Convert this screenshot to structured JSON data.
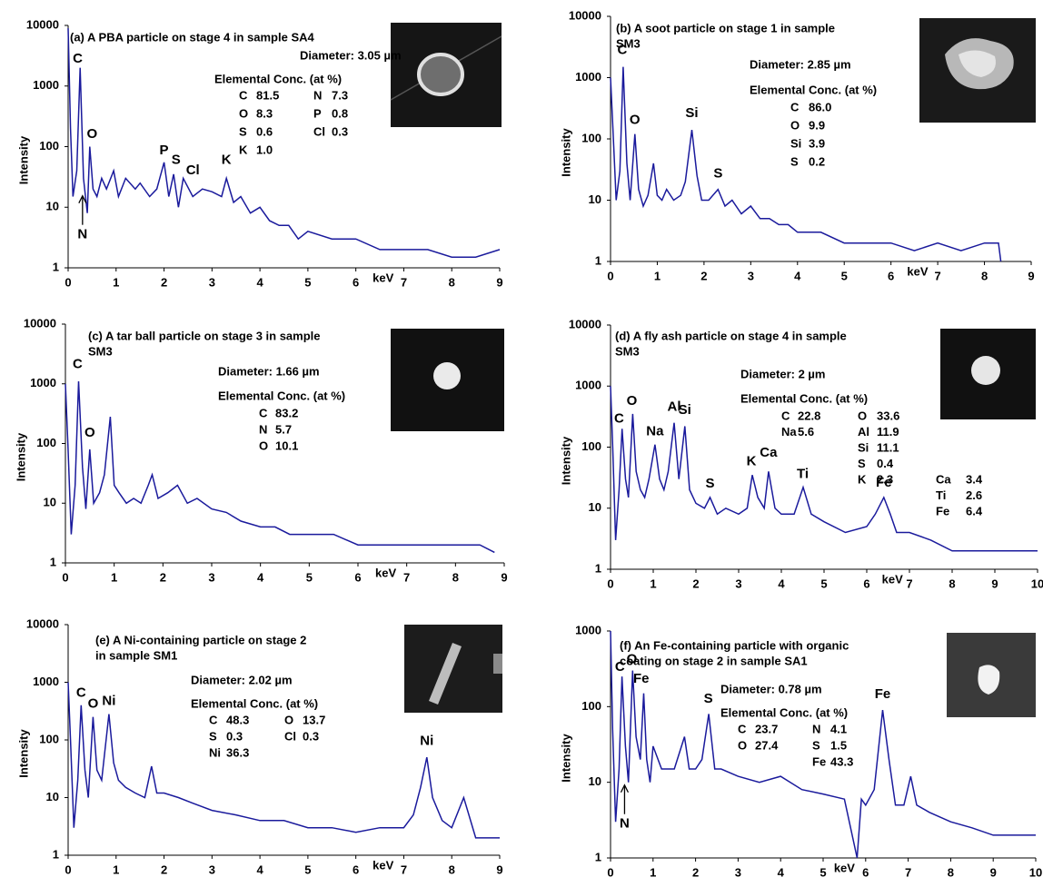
{
  "chart_data": [
    {
      "type": "line",
      "title": [
        "(a) A PBA particle on stage 4 in sample SA4"
      ],
      "ylabel": "Intensity",
      "xlabel": "keV",
      "color": "#1a1a9c",
      "log_y": true,
      "xlim": [
        0,
        9
      ],
      "ylim": [
        1,
        10000
      ],
      "xticks": [
        0,
        1,
        2,
        3,
        4,
        5,
        6,
        7,
        8,
        9
      ],
      "yticks": [
        1,
        10,
        100,
        1000,
        10000
      ],
      "x": [
        0,
        0.05,
        0.1,
        0.18,
        0.25,
        0.32,
        0.4,
        0.45,
        0.52,
        0.6,
        0.7,
        0.8,
        0.95,
        1.05,
        1.2,
        1.4,
        1.5,
        1.7,
        1.85,
        2.0,
        2.1,
        2.2,
        2.3,
        2.4,
        2.6,
        2.8,
        3.0,
        3.2,
        3.3,
        3.45,
        3.6,
        3.8,
        4.0,
        4.2,
        4.4,
        4.6,
        4.8,
        5.0,
        5.5,
        6.0,
        6.5,
        7.0,
        7.5,
        8.0,
        8.5,
        9.0
      ],
      "values": [
        9000,
        200,
        15,
        40,
        2000,
        30,
        8,
        100,
        20,
        15,
        30,
        20,
        40,
        15,
        30,
        20,
        25,
        15,
        20,
        55,
        15,
        35,
        10,
        30,
        15,
        20,
        18,
        15,
        30,
        12,
        15,
        8,
        10,
        6,
        5,
        5,
        3,
        4,
        3,
        3,
        2,
        2,
        2,
        1.5,
        1.5,
        2
      ],
      "annotations": [
        {
          "text": "C",
          "x": 0.2,
          "y": 2800
        },
        {
          "text": "O",
          "x": 0.5,
          "y": 160
        },
        {
          "text": "P",
          "x": 2.0,
          "y": 85
        },
        {
          "text": "S",
          "x": 2.25,
          "y": 60
        },
        {
          "text": "Cl",
          "x": 2.6,
          "y": 40
        },
        {
          "text": "K",
          "x": 3.3,
          "y": 60
        },
        {
          "text": "N",
          "x": 0.3,
          "y": 3.5,
          "arrow": true
        }
      ],
      "diameter": "Diameter: 3.05 µm",
      "conc_title": "Elemental Conc. (at %)",
      "conc_rows": [
        [
          "C",
          "81.5",
          "N",
          "7.3"
        ],
        [
          "O",
          "8.3",
          "P",
          "0.8"
        ],
        [
          "S",
          "0.6",
          "Cl",
          "0.3"
        ],
        [
          "K",
          "1.0"
        ]
      ]
    },
    {
      "type": "line",
      "title": [
        "(b) A soot particle on stage 1 in sample",
        "SM3"
      ],
      "ylabel": "Intensity",
      "xlabel": "keV",
      "color": "#1a1a9c",
      "log_y": true,
      "xlim": [
        0,
        9
      ],
      "ylim": [
        1,
        10000
      ],
      "xticks": [
        0,
        1,
        2,
        3,
        4,
        5,
        6,
        7,
        8,
        9
      ],
      "yticks": [
        1,
        10,
        100,
        1000,
        10000
      ],
      "x": [
        0,
        0.05,
        0.12,
        0.2,
        0.27,
        0.35,
        0.42,
        0.52,
        0.6,
        0.7,
        0.8,
        0.92,
        1.0,
        1.1,
        1.2,
        1.35,
        1.5,
        1.6,
        1.74,
        1.85,
        1.95,
        2.1,
        2.3,
        2.45,
        2.6,
        2.8,
        3.0,
        3.2,
        3.4,
        3.6,
        3.8,
        4.0,
        4.5,
        5.0,
        5.5,
        6.0,
        6.5,
        7.0,
        7.5,
        8.0,
        8.3,
        8.35
      ],
      "values": [
        1000,
        150,
        10,
        30,
        1500,
        40,
        10,
        120,
        15,
        8,
        12,
        40,
        12,
        10,
        15,
        10,
        12,
        20,
        140,
        25,
        10,
        10,
        15,
        8,
        10,
        6,
        8,
        5,
        5,
        4,
        4,
        3,
        3,
        2,
        2,
        2,
        1.5,
        2,
        1.5,
        2,
        2,
        1
      ],
      "annotations": [
        {
          "text": "C",
          "x": 0.25,
          "y": 2800
        },
        {
          "text": "O",
          "x": 0.52,
          "y": 200
        },
        {
          "text": "Si",
          "x": 1.74,
          "y": 260
        },
        {
          "text": "S",
          "x": 2.3,
          "y": 27
        }
      ],
      "diameter": "Diameter: 2.85 µm",
      "conc_title": "Elemental Conc. (at %)",
      "conc_rows": [
        [
          "C",
          "86.0"
        ],
        [
          "O",
          "9.9"
        ],
        [
          "Si",
          "3.9"
        ],
        [
          "S",
          "0.2"
        ]
      ]
    },
    {
      "type": "line",
      "title": [
        "(c) A tar ball particle on stage 3 in sample",
        "SM3"
      ],
      "ylabel": "Intensity",
      "xlabel": "keV",
      "color": "#1a1a9c",
      "log_y": true,
      "xlim": [
        0,
        9
      ],
      "ylim": [
        1,
        10000
      ],
      "xticks": [
        0,
        1,
        2,
        3,
        4,
        5,
        6,
        7,
        8,
        9
      ],
      "yticks": [
        1,
        10,
        100,
        1000,
        10000
      ],
      "x": [
        0,
        0.05,
        0.12,
        0.2,
        0.27,
        0.35,
        0.42,
        0.5,
        0.58,
        0.7,
        0.8,
        0.92,
        1.0,
        1.1,
        1.25,
        1.4,
        1.55,
        1.7,
        1.78,
        1.9,
        2.1,
        2.3,
        2.5,
        2.7,
        3.0,
        3.3,
        3.6,
        4.0,
        4.3,
        4.6,
        5.0,
        5.5,
        6.0,
        6.5,
        7.0,
        7.5,
        8.0,
        8.5,
        8.8
      ],
      "values": [
        1000,
        100,
        3,
        20,
        1100,
        40,
        8,
        80,
        10,
        15,
        30,
        280,
        20,
        15,
        10,
        12,
        10,
        20,
        30,
        12,
        15,
        20,
        10,
        12,
        8,
        7,
        5,
        4,
        4,
        3,
        3,
        3,
        2,
        2,
        2,
        2,
        2,
        2,
        1.5
      ],
      "annotations": [
        {
          "text": "C",
          "x": 0.25,
          "y": 2100
        },
        {
          "text": "O",
          "x": 0.5,
          "y": 150
        }
      ],
      "diameter": "Diameter: 1.66 µm",
      "conc_title": "Elemental Conc. (at %)",
      "conc_rows": [
        [
          "C",
          "83.2"
        ],
        [
          "N",
          "5.7"
        ],
        [
          "O",
          "10.1"
        ]
      ]
    },
    {
      "type": "line",
      "title": [
        "(d) A fly ash particle on stage 4 in sample",
        "SM3"
      ],
      "ylabel": "Intensity",
      "xlabel": "keV",
      "color": "#1a1a9c",
      "log_y": true,
      "xlim": [
        0,
        10
      ],
      "ylim": [
        1,
        10000
      ],
      "xticks": [
        0,
        1,
        2,
        3,
        4,
        5,
        6,
        7,
        8,
        9,
        10
      ],
      "yticks": [
        1,
        10,
        100,
        1000,
        10000
      ],
      "x": [
        0,
        0.05,
        0.12,
        0.2,
        0.27,
        0.35,
        0.42,
        0.52,
        0.6,
        0.7,
        0.8,
        0.9,
        1.04,
        1.15,
        1.25,
        1.35,
        1.49,
        1.6,
        1.74,
        1.85,
        2.0,
        2.2,
        2.33,
        2.5,
        2.7,
        3.0,
        3.2,
        3.32,
        3.45,
        3.6,
        3.7,
        3.85,
        4.0,
        4.3,
        4.51,
        4.7,
        5.0,
        5.5,
        6.0,
        6.2,
        6.4,
        6.55,
        6.7,
        7.0,
        7.5,
        8.0,
        8.5,
        9.0,
        9.5,
        10.0
      ],
      "values": [
        1000,
        100,
        3,
        20,
        200,
        30,
        15,
        350,
        40,
        20,
        15,
        30,
        110,
        30,
        20,
        40,
        250,
        30,
        220,
        20,
        12,
        10,
        15,
        8,
        10,
        8,
        10,
        35,
        15,
        10,
        40,
        10,
        8,
        8,
        22,
        8,
        6,
        4,
        5,
        8,
        15,
        8,
        4,
        4,
        3,
        2,
        2,
        2,
        2,
        2
      ],
      "annotations": [
        {
          "text": "C",
          "x": 0.2,
          "y": 290
        },
        {
          "text": "O",
          "x": 0.5,
          "y": 560
        },
        {
          "text": "Na",
          "x": 1.04,
          "y": 180
        },
        {
          "text": "Al",
          "x": 1.49,
          "y": 450
        },
        {
          "text": "Si",
          "x": 1.74,
          "y": 400
        },
        {
          "text": "S",
          "x": 2.33,
          "y": 25
        },
        {
          "text": "K",
          "x": 3.3,
          "y": 58
        },
        {
          "text": "Ca",
          "x": 3.7,
          "y": 80
        },
        {
          "text": "Ti",
          "x": 4.5,
          "y": 36
        },
        {
          "text": "Fe",
          "x": 6.4,
          "y": 26
        }
      ],
      "diameter": "Diameter: 2 µm",
      "conc_title": "Elemental Conc. (at %)",
      "conc_rows": [
        [
          "C",
          "22.8",
          "O",
          "33.6"
        ],
        [
          "Na",
          "5.6",
          "Al",
          "11.9"
        ],
        [
          null,
          null,
          "Si",
          "11.1"
        ],
        [
          null,
          null,
          "S",
          "0.4"
        ],
        [
          null,
          null,
          "K",
          "2.3",
          "Ca",
          "3.4"
        ],
        [
          null,
          null,
          null,
          null,
          "Ti",
          "2.6"
        ],
        [
          null,
          null,
          null,
          null,
          "Fe",
          "6.4"
        ]
      ]
    },
    {
      "type": "line",
      "title": [
        "(e) A Ni-containing particle on stage 2",
        "in sample SM1"
      ],
      "ylabel": "Intensity",
      "xlabel": "keV",
      "color": "#1a1a9c",
      "log_y": true,
      "xlim": [
        0,
        9
      ],
      "ylim": [
        1,
        10000
      ],
      "xticks": [
        0,
        1,
        2,
        3,
        4,
        5,
        6,
        7,
        8,
        9
      ],
      "yticks": [
        1,
        10,
        100,
        1000,
        10000
      ],
      "x": [
        0,
        0.05,
        0.12,
        0.2,
        0.27,
        0.35,
        0.42,
        0.52,
        0.6,
        0.7,
        0.85,
        0.95,
        1.05,
        1.2,
        1.4,
        1.6,
        1.74,
        1.85,
        2.0,
        2.3,
        2.6,
        3.0,
        3.5,
        4.0,
        4.5,
        5.0,
        5.5,
        6.0,
        6.5,
        7.0,
        7.2,
        7.35,
        7.48,
        7.6,
        7.8,
        8.0,
        8.25,
        8.5,
        8.8,
        9.0
      ],
      "values": [
        1000,
        100,
        3,
        20,
        400,
        30,
        10,
        250,
        30,
        20,
        280,
        40,
        20,
        15,
        12,
        10,
        35,
        12,
        12,
        10,
        8,
        6,
        5,
        4,
        4,
        3,
        3,
        2.5,
        3,
        3,
        5,
        15,
        50,
        10,
        4,
        3,
        10,
        2,
        2,
        2
      ],
      "annotations": [
        {
          "text": "C",
          "x": 0.27,
          "y": 650
        },
        {
          "text": "O",
          "x": 0.52,
          "y": 420
        },
        {
          "text": "Ni",
          "x": 0.85,
          "y": 470
        },
        {
          "text": "Ni",
          "x": 7.48,
          "y": 95
        }
      ],
      "diameter": "Diameter: 2.02 µm",
      "conc_title": "Elemental Conc. (at %)",
      "conc_rows": [
        [
          "C",
          "48.3",
          "O",
          "13.7"
        ],
        [
          "S",
          "0.3",
          "Cl",
          "0.3"
        ],
        [
          "Ni",
          "36.3"
        ]
      ]
    },
    {
      "type": "line",
      "title": [
        "(f) An Fe-containing particle with organic",
        "coating on stage 2 in sample SA1"
      ],
      "ylabel": "Intensity",
      "xlabel": "keV",
      "color": "#1a1a9c",
      "log_y": true,
      "xlim": [
        0,
        10
      ],
      "ylim": [
        1,
        1000
      ],
      "xticks": [
        0,
        1,
        2,
        3,
        4,
        5,
        6,
        7,
        8,
        9,
        10
      ],
      "yticks": [
        1,
        10,
        100,
        1000
      ],
      "x": [
        0,
        0.05,
        0.12,
        0.2,
        0.27,
        0.35,
        0.42,
        0.52,
        0.6,
        0.7,
        0.78,
        0.85,
        0.93,
        1.0,
        1.2,
        1.5,
        1.74,
        1.85,
        2.0,
        2.15,
        2.31,
        2.45,
        2.6,
        3.0,
        3.5,
        4.0,
        4.5,
        5.0,
        5.5,
        5.8,
        5.9,
        6.0,
        6.2,
        6.4,
        6.55,
        6.7,
        6.9,
        7.06,
        7.2,
        7.5,
        8.0,
        8.5,
        9.0,
        9.5,
        10.0
      ],
      "values": [
        1000,
        50,
        3,
        15,
        250,
        30,
        10,
        300,
        40,
        20,
        150,
        20,
        10,
        30,
        15,
        15,
        40,
        15,
        15,
        20,
        80,
        15,
        15,
        12,
        10,
        12,
        8,
        7,
        6,
        1,
        6,
        5,
        8,
        90,
        20,
        5,
        5,
        12,
        5,
        4,
        3,
        2.5,
        2,
        2,
        2
      ],
      "annotations": [
        {
          "text": "C",
          "x": 0.22,
          "y": 330
        },
        {
          "text": "O",
          "x": 0.5,
          "y": 420
        },
        {
          "text": "Fe",
          "x": 0.72,
          "y": 230
        },
        {
          "text": "S",
          "x": 2.3,
          "y": 125
        },
        {
          "text": "Fe",
          "x": 6.4,
          "y": 145
        },
        {
          "text": "N",
          "x": 0.33,
          "y": 2.8,
          "arrow": true
        }
      ],
      "diameter": "Diameter: 0.78 µm",
      "conc_title": "Elemental Conc. (at %)",
      "conc_rows": [
        [
          "C",
          "23.7",
          "N",
          "4.1"
        ],
        [
          "O",
          "27.4",
          "S",
          "1.5"
        ],
        [
          null,
          null,
          "Fe",
          "43.3"
        ]
      ]
    }
  ]
}
